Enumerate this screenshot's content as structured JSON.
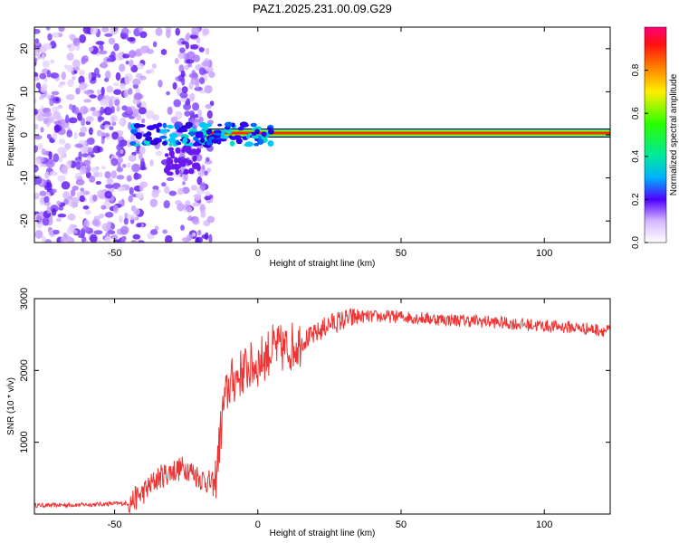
{
  "title": "PAZ1.2025.231.00.09.G29",
  "chart_data": [
    {
      "type": "heatmap",
      "name": "spectrogram",
      "xlabel": "Height of straight line (km)",
      "ylabel": "Frequency (Hz)",
      "xlim": [
        -78,
        123
      ],
      "ylim": [
        -25,
        25
      ],
      "xticks": [
        -50,
        0,
        50,
        100
      ],
      "xtick_labels": [
        "-50",
        "0",
        "50",
        "100"
      ],
      "yticks": [
        -20,
        -10,
        0,
        10,
        20
      ],
      "ytick_labels": [
        "-20",
        "-10",
        "0",
        "10",
        "20"
      ],
      "colorbar": {
        "label": "Normalized spectral amplitude",
        "range": [
          0,
          1
        ],
        "ticks": [
          0.0,
          0.2,
          0.4,
          0.6,
          0.8
        ],
        "tick_labels": [
          "0.0",
          "0.2",
          "0.4",
          "0.6",
          "0.8"
        ]
      },
      "regions": [
        {
          "description": "noise",
          "x_range": [
            -78,
            -16
          ],
          "freq_range": [
            -25,
            25
          ],
          "amplitude": 0.1
        },
        {
          "description": "signal",
          "x_range": [
            -16,
            123
          ],
          "freq_hz": 0,
          "amplitude": 0.9
        }
      ]
    },
    {
      "type": "line",
      "name": "snr",
      "xlabel": "Height of straight line (km)",
      "ylabel": "SNR (10 * v/v)",
      "xlim": [
        -78,
        123
      ],
      "ylim": [
        0,
        3000
      ],
      "xticks": [
        -50,
        0,
        50,
        100
      ],
      "xtick_labels": [
        "-50",
        "0",
        "50",
        "100"
      ],
      "yticks": [
        1000,
        2000,
        3000
      ],
      "ytick_labels": [
        "1000",
        "2000",
        "3000"
      ],
      "color": "#ee3333",
      "series": [
        {
          "name": "SNR",
          "x": [
            -78,
            -60,
            -45,
            -40,
            -35,
            -30,
            -25,
            -20,
            -15,
            -12,
            -10,
            -5,
            0,
            5,
            10,
            15,
            20,
            25,
            30,
            35,
            40,
            50,
            60,
            70,
            80,
            90,
            100,
            110,
            123
          ],
          "y": [
            120,
            130,
            150,
            300,
            500,
            600,
            650,
            500,
            400,
            1500,
            1800,
            2000,
            2100,
            2300,
            2300,
            2400,
            2500,
            2650,
            2700,
            2750,
            2750,
            2750,
            2720,
            2700,
            2680,
            2650,
            2620,
            2600,
            2550
          ]
        }
      ]
    }
  ]
}
